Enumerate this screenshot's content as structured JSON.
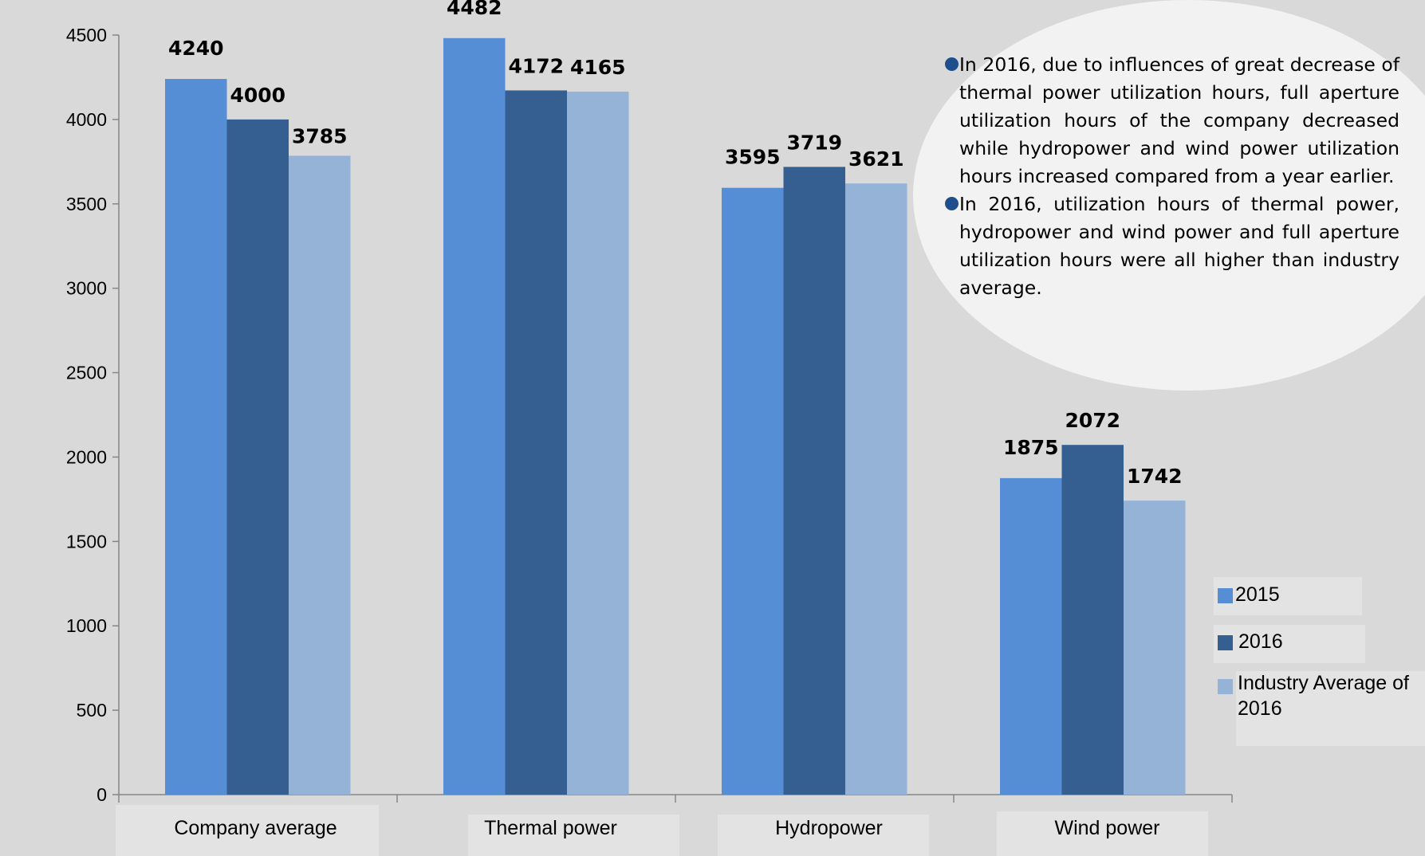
{
  "chart_data": {
    "type": "bar",
    "categories": [
      "Company average",
      "Thermal power",
      "Hydropower",
      "Wind power"
    ],
    "series": [
      {
        "name": "2015",
        "values": [
          4240,
          4482,
          3595,
          1875
        ],
        "color": "#558ed5"
      },
      {
        "name": "2016",
        "values": [
          4000,
          4172,
          3719,
          2072
        ],
        "color": "#355f91"
      },
      {
        "name": "Industry Average of 2016",
        "values": [
          3785,
          4165,
          3621,
          1742
        ],
        "color": "#95b3d7"
      }
    ],
    "ylim": [
      0,
      4500
    ],
    "yticks": [
      0,
      500,
      1000,
      1500,
      2000,
      2500,
      3000,
      3500,
      4000,
      4500
    ],
    "grid": false,
    "legend": "right"
  },
  "notes": [
    "In 2016, due to influences of great decrease of thermal power utilization hours, full aperture utilization hours of the company decreased while hydropower and wind power utilization hours increased compared from a year earlier.",
    "In 2016, utilization hours of thermal power, hydropower and wind power and full aperture utilization hours were all higher than industry average."
  ],
  "colors": {
    "background": "#d9d9d9",
    "note_bubble": "#f2f2f2",
    "bullet": "#1f4e8c"
  }
}
